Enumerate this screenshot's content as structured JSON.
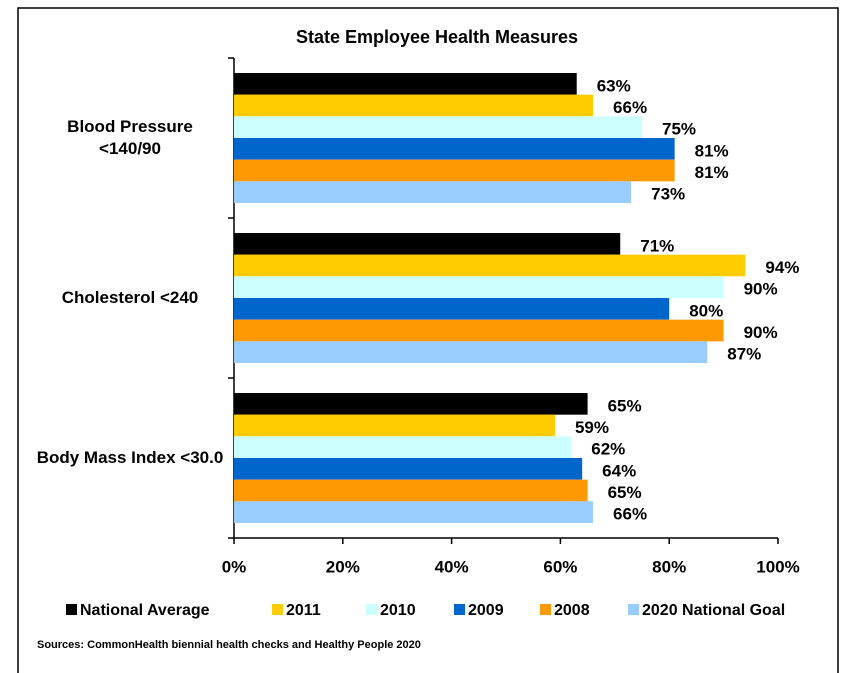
{
  "chart_data": {
    "type": "hbar",
    "title": "State Employee Health Measures",
    "categories": [
      "Blood Pressure <140/90",
      "Cholesterol  <240",
      "Body Mass Index <30.0"
    ],
    "series": [
      {
        "name": "National Average",
        "color": "#000000",
        "values": [
          63,
          71,
          65
        ],
        "value_labels": [
          "63%",
          "71%",
          "65%"
        ]
      },
      {
        "name": "2011",
        "color": "#ffcc00",
        "values": [
          66,
          94,
          59
        ],
        "value_labels": [
          "66%",
          "94%",
          "59%"
        ]
      },
      {
        "name": "2010",
        "color": "#ccffff",
        "values": [
          75,
          90,
          62
        ],
        "value_labels": [
          "75%",
          "90%",
          "62%"
        ]
      },
      {
        "name": "2009",
        "color": "#0066cc",
        "values": [
          81,
          80,
          64
        ],
        "value_labels": [
          "81%",
          "80%",
          "64%"
        ]
      },
      {
        "name": "2008",
        "color": "#ff9900",
        "values": [
          81,
          90,
          65
        ],
        "value_labels": [
          "81%",
          "90%",
          "65%"
        ]
      },
      {
        "name": "2020 National Goal",
        "color": "#99ccff",
        "values": [
          73,
          87,
          66
        ],
        "value_labels": [
          "73%",
          "87%",
          "66%"
        ]
      }
    ],
    "xlim": [
      0,
      100
    ],
    "xticks": [
      {
        "value": 0,
        "label": "0%"
      },
      {
        "value": 20,
        "label": "20%"
      },
      {
        "value": 40,
        "label": "40%"
      },
      {
        "value": 60,
        "label": "60%"
      },
      {
        "value": 80,
        "label": "80%"
      },
      {
        "value": 100,
        "label": "100%"
      }
    ],
    "legend": "bottom",
    "source": "Sources: CommonHealth  biennial health checks and Healthy People 2020"
  }
}
